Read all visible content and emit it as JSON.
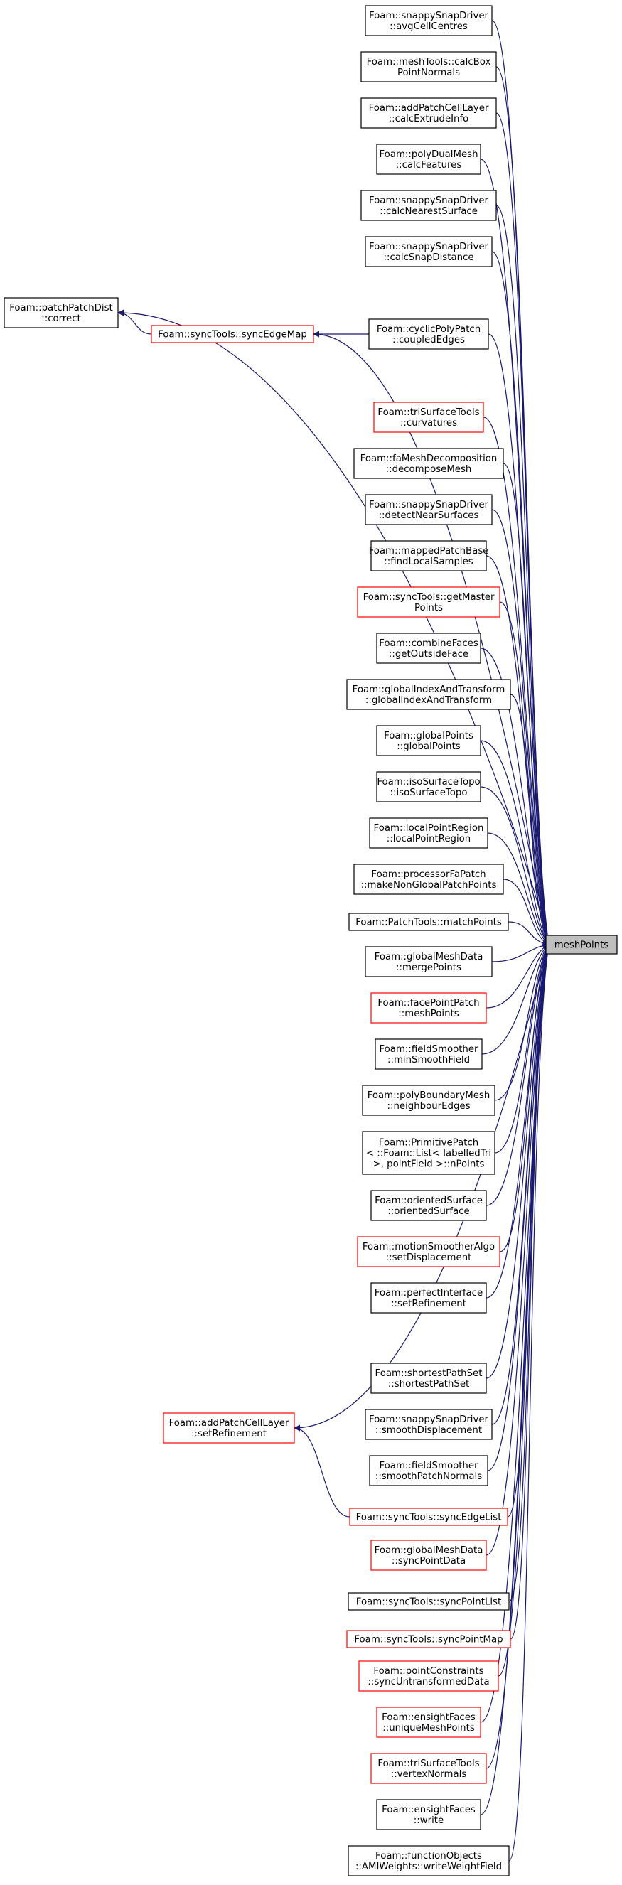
{
  "colors": {
    "edge": "#191970",
    "node_border_black": "#000000",
    "node_border_red": "#ff0000",
    "target_fill": "#bfbfbf",
    "node_fill": "#ffffff"
  },
  "target": {
    "id": "meshPoints",
    "lines": [
      "meshPoints"
    ]
  },
  "nodes": [
    {
      "id": "n1",
      "lines": [
        "Foam::snappySnapDriver",
        "::avgCellCentres"
      ],
      "border": "black"
    },
    {
      "id": "n2",
      "lines": [
        "Foam::meshTools::calcBox",
        "PointNormals"
      ],
      "border": "black"
    },
    {
      "id": "n3",
      "lines": [
        "Foam::addPatchCellLayer",
        "::calcExtrudeInfo"
      ],
      "border": "black"
    },
    {
      "id": "n4",
      "lines": [
        "Foam::polyDualMesh",
        "::calcFeatures"
      ],
      "border": "black"
    },
    {
      "id": "n5",
      "lines": [
        "Foam::snappySnapDriver",
        "::calcNearestSurface"
      ],
      "border": "black"
    },
    {
      "id": "n6",
      "lines": [
        "Foam::snappySnapDriver",
        "::calcSnapDistance"
      ],
      "border": "black"
    },
    {
      "id": "patchPatchDist",
      "lines": [
        "Foam::patchPatchDist",
        "::correct"
      ],
      "border": "black"
    },
    {
      "id": "syncEdgeMap",
      "lines": [
        "Foam::syncTools::syncEdgeMap"
      ],
      "border": "red"
    },
    {
      "id": "coupledEdges",
      "lines": [
        "Foam::cyclicPolyPatch",
        "::coupledEdges"
      ],
      "border": "black"
    },
    {
      "id": "n10",
      "lines": [
        "Foam::triSurfaceTools",
        "::curvatures"
      ],
      "border": "red"
    },
    {
      "id": "n11",
      "lines": [
        "Foam::faMeshDecomposition",
        "::decomposeMesh"
      ],
      "border": "black"
    },
    {
      "id": "n12",
      "lines": [
        "Foam::snappySnapDriver",
        "::detectNearSurfaces"
      ],
      "border": "black"
    },
    {
      "id": "n13",
      "lines": [
        "Foam::mappedPatchBase",
        "::findLocalSamples"
      ],
      "border": "black"
    },
    {
      "id": "n14",
      "lines": [
        "Foam::syncTools::getMaster",
        "Points"
      ],
      "border": "red"
    },
    {
      "id": "n15",
      "lines": [
        "Foam::combineFaces",
        "::getOutsideFace"
      ],
      "border": "black"
    },
    {
      "id": "n16",
      "lines": [
        "Foam::globalIndexAndTransform",
        "::globalIndexAndTransform"
      ],
      "border": "black"
    },
    {
      "id": "n17",
      "lines": [
        "Foam::globalPoints",
        "::globalPoints"
      ],
      "border": "black"
    },
    {
      "id": "n18",
      "lines": [
        "Foam::isoSurfaceTopo",
        "::isoSurfaceTopo"
      ],
      "border": "black"
    },
    {
      "id": "n19",
      "lines": [
        "Foam::localPointRegion",
        "::localPointRegion"
      ],
      "border": "black"
    },
    {
      "id": "n20",
      "lines": [
        "Foam::processorFaPatch",
        "::makeNonGlobalPatchPoints"
      ],
      "border": "black"
    },
    {
      "id": "n21",
      "lines": [
        "Foam::PatchTools::matchPoints"
      ],
      "border": "black"
    },
    {
      "id": "n22",
      "lines": [
        "Foam::globalMeshData",
        "::mergePoints"
      ],
      "border": "black"
    },
    {
      "id": "n23",
      "lines": [
        "Foam::facePointPatch",
        "::meshPoints"
      ],
      "border": "red"
    },
    {
      "id": "n24",
      "lines": [
        "Foam::fieldSmoother",
        "::minSmoothField"
      ],
      "border": "black"
    },
    {
      "id": "n25",
      "lines": [
        "Foam::polyBoundaryMesh",
        "::neighbourEdges"
      ],
      "border": "black"
    },
    {
      "id": "n26",
      "lines": [
        "Foam::PrimitivePatch",
        "< ::Foam::List< labelledTri",
        " >, pointField >::nPoints"
      ],
      "border": "black"
    },
    {
      "id": "n27",
      "lines": [
        "Foam::orientedSurface",
        "::orientedSurface"
      ],
      "border": "black"
    },
    {
      "id": "n28",
      "lines": [
        "Foam::motionSmootherAlgo",
        "::setDisplacement"
      ],
      "border": "red"
    },
    {
      "id": "n29",
      "lines": [
        "Foam::perfectInterface",
        "::setRefinement"
      ],
      "border": "black"
    },
    {
      "id": "addPatchSetRef",
      "lines": [
        "Foam::addPatchCellLayer",
        "::setRefinement"
      ],
      "border": "red"
    },
    {
      "id": "n31",
      "lines": [
        "Foam::shortestPathSet",
        "::shortestPathSet"
      ],
      "border": "black"
    },
    {
      "id": "n32",
      "lines": [
        "Foam::snappySnapDriver",
        "::smoothDisplacement"
      ],
      "border": "black"
    },
    {
      "id": "n33",
      "lines": [
        "Foam::fieldSmoother",
        "::smoothPatchNormals"
      ],
      "border": "black"
    },
    {
      "id": "syncEdgeList",
      "lines": [
        "Foam::syncTools::syncEdgeList"
      ],
      "border": "red"
    },
    {
      "id": "n35",
      "lines": [
        "Foam::globalMeshData",
        "::syncPointData"
      ],
      "border": "red"
    },
    {
      "id": "n36",
      "lines": [
        "Foam::syncTools::syncPointList"
      ],
      "border": "black"
    },
    {
      "id": "n37",
      "lines": [
        "Foam::syncTools::syncPointMap"
      ],
      "border": "red"
    },
    {
      "id": "n38",
      "lines": [
        "Foam::pointConstraints",
        "::syncUntransformedData"
      ],
      "border": "red"
    },
    {
      "id": "n39",
      "lines": [
        "Foam::ensightFaces",
        "::uniqueMeshPoints"
      ],
      "border": "red"
    },
    {
      "id": "n40",
      "lines": [
        "Foam::triSurfaceTools",
        "::vertexNormals"
      ],
      "border": "red"
    },
    {
      "id": "n41",
      "lines": [
        "Foam::ensightFaces",
        "::write"
      ],
      "border": "black"
    },
    {
      "id": "n42",
      "lines": [
        "Foam::functionObjects",
        "::AMIWeights::writeWeightField"
      ],
      "border": "black"
    }
  ],
  "edges": [
    {
      "from": "n1",
      "to": "meshPoints"
    },
    {
      "from": "n2",
      "to": "meshPoints"
    },
    {
      "from": "n3",
      "to": "meshPoints"
    },
    {
      "from": "n4",
      "to": "meshPoints"
    },
    {
      "from": "n5",
      "to": "meshPoints"
    },
    {
      "from": "n6",
      "to": "meshPoints"
    },
    {
      "from": "patchPatchDist",
      "to": "meshPoints"
    },
    {
      "from": "syncEdgeMap",
      "to": "patchPatchDist"
    },
    {
      "from": "syncEdgeMap",
      "to": "meshPoints"
    },
    {
      "from": "coupledEdges",
      "to": "syncEdgeMap"
    },
    {
      "from": "coupledEdges",
      "to": "meshPoints"
    },
    {
      "from": "n10",
      "to": "meshPoints"
    },
    {
      "from": "n11",
      "to": "meshPoints"
    },
    {
      "from": "n12",
      "to": "meshPoints"
    },
    {
      "from": "n13",
      "to": "meshPoints"
    },
    {
      "from": "n14",
      "to": "meshPoints"
    },
    {
      "from": "n15",
      "to": "meshPoints"
    },
    {
      "from": "n16",
      "to": "meshPoints"
    },
    {
      "from": "n17",
      "to": "meshPoints"
    },
    {
      "from": "n18",
      "to": "meshPoints"
    },
    {
      "from": "n19",
      "to": "meshPoints"
    },
    {
      "from": "n20",
      "to": "meshPoints"
    },
    {
      "from": "n21",
      "to": "meshPoints"
    },
    {
      "from": "n22",
      "to": "meshPoints"
    },
    {
      "from": "n23",
      "to": "meshPoints"
    },
    {
      "from": "n24",
      "to": "meshPoints"
    },
    {
      "from": "n25",
      "to": "meshPoints"
    },
    {
      "from": "n26",
      "to": "meshPoints"
    },
    {
      "from": "n27",
      "to": "meshPoints"
    },
    {
      "from": "n28",
      "to": "meshPoints"
    },
    {
      "from": "n29",
      "to": "meshPoints"
    },
    {
      "from": "addPatchSetRef",
      "to": "meshPoints"
    },
    {
      "from": "syncEdgeList",
      "to": "addPatchSetRef"
    },
    {
      "from": "syncEdgeList",
      "to": "meshPoints"
    },
    {
      "from": "n31",
      "to": "meshPoints"
    },
    {
      "from": "n32",
      "to": "meshPoints"
    },
    {
      "from": "n33",
      "to": "meshPoints"
    },
    {
      "from": "n35",
      "to": "meshPoints"
    },
    {
      "from": "n36",
      "to": "meshPoints"
    },
    {
      "from": "n37",
      "to": "meshPoints"
    },
    {
      "from": "n38",
      "to": "meshPoints"
    },
    {
      "from": "n39",
      "to": "meshPoints"
    },
    {
      "from": "n40",
      "to": "meshPoints"
    },
    {
      "from": "n41",
      "to": "meshPoints"
    },
    {
      "from": "n42",
      "to": "meshPoints"
    }
  ]
}
